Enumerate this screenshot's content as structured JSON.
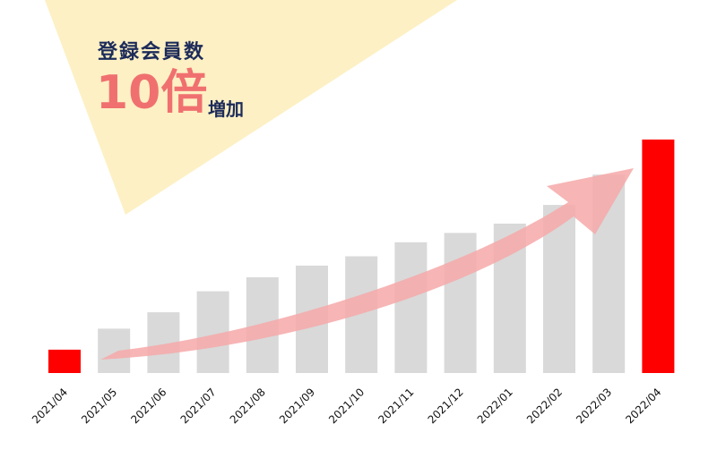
{
  "headline": {
    "title": "登録会員数",
    "multiplier": "10倍",
    "suffix": "増加"
  },
  "colors": {
    "background_triangle": "#fdf0c4",
    "bar_default": "#d9d9d9",
    "bar_highlight": "#ff0000",
    "arrow": "#f6a8a8",
    "headline_dark": "#1c2b5a",
    "headline_accent": "#f07070"
  },
  "chart_data": {
    "type": "bar",
    "title": "",
    "xlabel": "",
    "ylabel": "",
    "categories": [
      "2021/04",
      "2021/05",
      "2021/06",
      "2021/07",
      "2021/08",
      "2021/09",
      "2021/10",
      "2021/11",
      "2021/12",
      "2022/01",
      "2022/02",
      "2022/03",
      "2022/04"
    ],
    "values": [
      10,
      19,
      26,
      35,
      41,
      46,
      50,
      56,
      60,
      64,
      72,
      85,
      100
    ],
    "highlight": [
      "2021/04",
      "2022/04"
    ],
    "ylim": [
      0,
      100
    ],
    "grid": false,
    "legend": "none",
    "trend_arrow": true
  }
}
